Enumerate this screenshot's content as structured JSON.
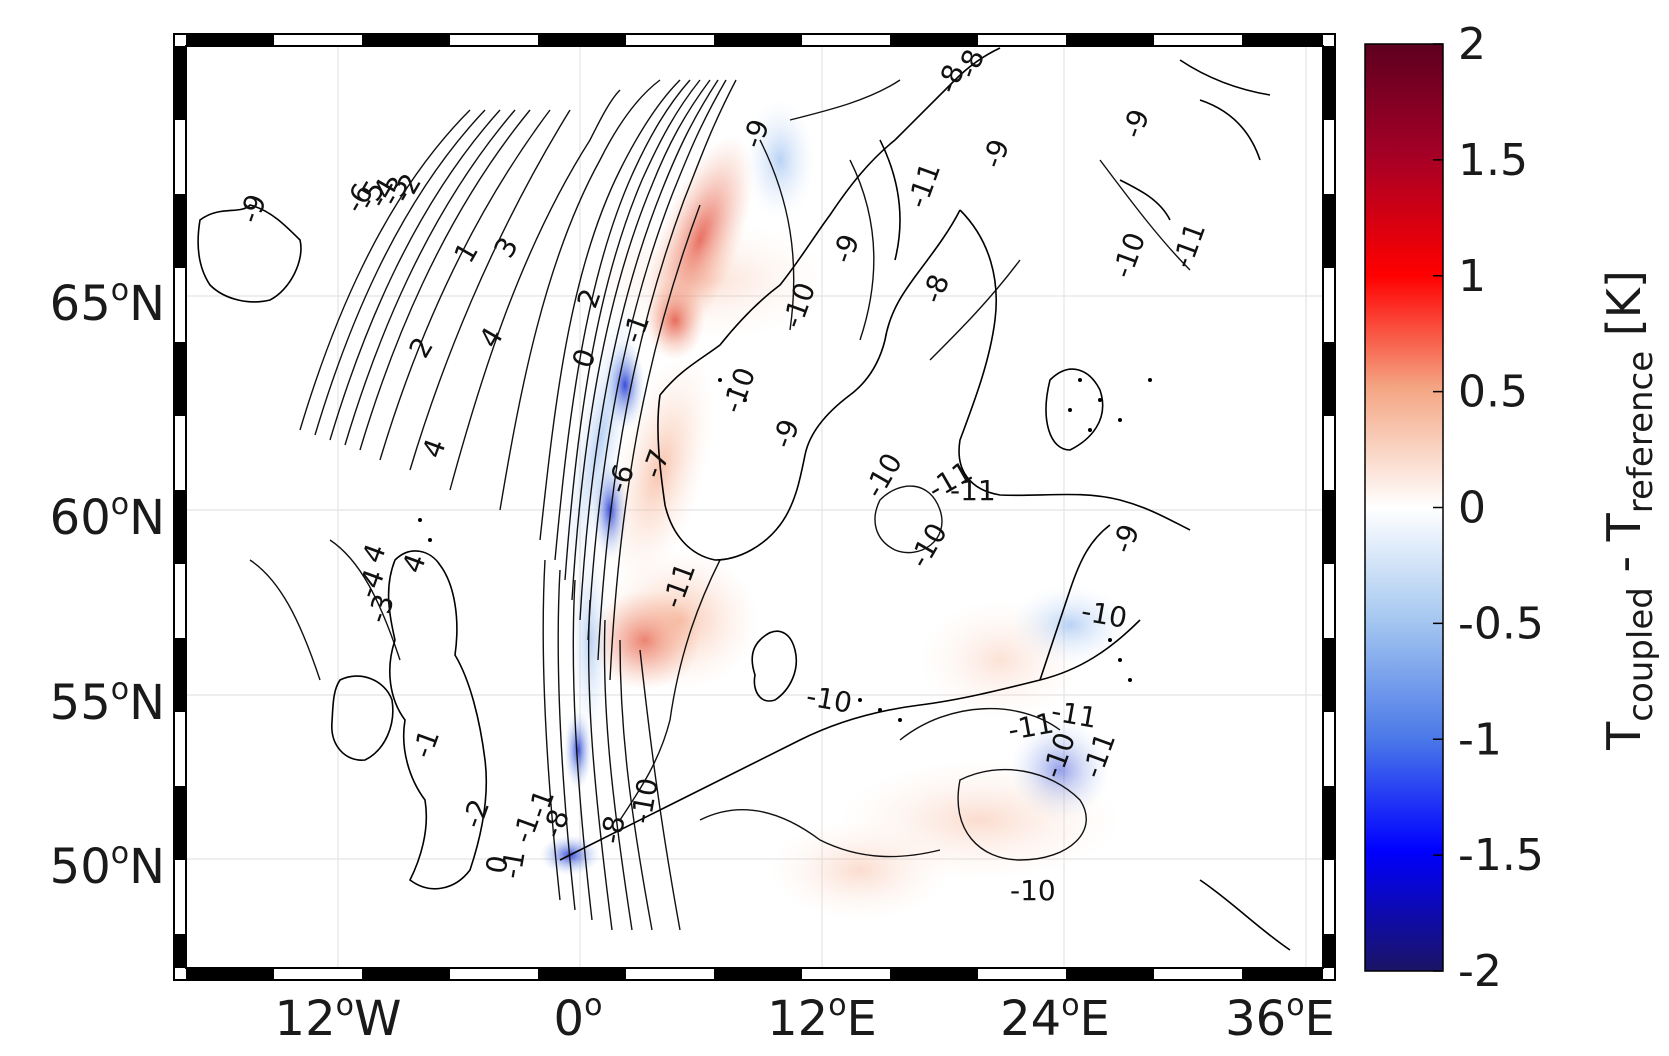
{
  "map": {
    "lon_ticks": [
      {
        "num": "12",
        "deg": "o",
        "hemi": "W"
      },
      {
        "num": "0",
        "deg": "o",
        "hemi": ""
      },
      {
        "num": "12",
        "deg": "o",
        "hemi": "E"
      },
      {
        "num": "24",
        "deg": "o",
        "hemi": "E"
      },
      {
        "num": "36",
        "deg": "o",
        "hemi": "E"
      }
    ],
    "lat_ticks": [
      {
        "num": "65",
        "deg": "o",
        "hemi": "N"
      },
      {
        "num": "60",
        "deg": "o",
        "hemi": "N"
      },
      {
        "num": "55",
        "deg": "o",
        "hemi": "N"
      },
      {
        "num": "50",
        "deg": "o",
        "hemi": "N"
      }
    ],
    "contour_labels": [
      "-6",
      "-5",
      "-4",
      "-3",
      "-2",
      "1",
      "3",
      "2",
      "4",
      "4",
      "4",
      "4",
      "-3",
      "-4",
      "2",
      "0",
      "-1",
      "-1",
      "-2",
      "-9",
      "-9",
      "-8",
      "-11",
      "-8",
      "-9",
      "-10",
      "-10",
      "-11",
      "-9",
      "-11",
      "-10",
      "-11",
      "-10",
      "-9",
      "-10",
      "-11",
      "-10",
      "-11",
      "-11",
      "-10",
      "-11",
      "-10",
      "-10",
      "-9",
      "-8",
      "-1",
      "0",
      "-1",
      "-6",
      "-7",
      "-8",
      "-1",
      "-9",
      "-10",
      "-8"
    ]
  },
  "colorbar": {
    "ticks": [
      "2",
      "1.5",
      "1",
      "0.5",
      "0",
      "-0.5",
      "-1",
      "-1.5",
      "-2"
    ],
    "min": -2,
    "max": 2,
    "colormap": [
      "#5e0020",
      "#a50026",
      "#ff0000",
      "#f4a582",
      "#ffffff",
      "#a6c8f0",
      "#4a78e8",
      "#0000ff",
      "#1b1464"
    ],
    "label_main": "T",
    "label_sub1": "coupled",
    "label_mid": " - T",
    "label_sub2": "reference",
    "label_unit": " [K]"
  }
}
